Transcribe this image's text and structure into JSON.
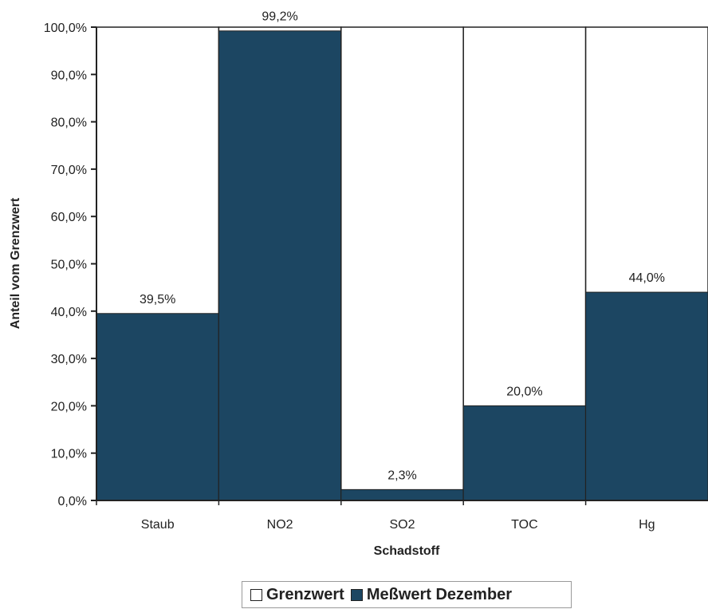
{
  "chart_data": {
    "type": "bar",
    "xlabel": "Schadstoff",
    "ylabel": "Anteil vom Grenzwert",
    "ylim": [
      0,
      100
    ],
    "y_ticks": [
      "0,0%",
      "10,0%",
      "20,0%",
      "30,0%",
      "40,0%",
      "50,0%",
      "60,0%",
      "70,0%",
      "80,0%",
      "90,0%",
      "100,0%"
    ],
    "y_tick_values": [
      0,
      10,
      20,
      30,
      40,
      50,
      60,
      70,
      80,
      90,
      100
    ],
    "categories": [
      "Staub",
      "NO2",
      "SO2",
      "TOC",
      "Hg"
    ],
    "series": [
      {
        "name": "Grenzwert",
        "values": [
          100,
          100,
          100,
          100,
          100
        ],
        "color": "#ffffff"
      },
      {
        "name": "Meßwert Dezember",
        "values": [
          39.5,
          99.2,
          2.3,
          20.0,
          44.0
        ],
        "color": "#1c4662",
        "labels": [
          "39,5%",
          "99,2%",
          "2,3%",
          "20,0%",
          "44,0%"
        ]
      }
    ],
    "grid": false,
    "legend_position": "bottom"
  }
}
